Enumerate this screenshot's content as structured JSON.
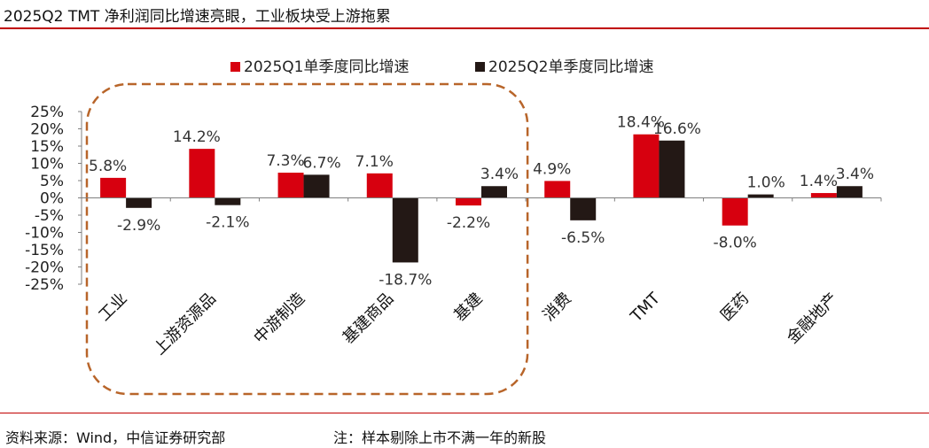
{
  "header": {
    "title": "2025Q2 TMT 净利润同比增速亮眼，工业板块受上游拖累"
  },
  "footer": {
    "source": "资料来源：Wind，中信证券研究部",
    "note": "注：样本剔除上市不满一年的新股"
  },
  "chart_data": {
    "type": "bar",
    "categories": [
      "工业",
      "上游资源品",
      "中游制造",
      "基建商品",
      "基建",
      "消费",
      "TMT",
      "医药",
      "金融地产"
    ],
    "series": [
      {
        "name": "2025Q1单季度同比增速",
        "values": [
          5.8,
          14.2,
          7.3,
          7.1,
          -2.2,
          4.9,
          18.4,
          -8.0,
          1.4
        ],
        "labels": [
          "5.8%",
          "14.2%",
          "7.3%",
          "7.1%",
          "-2.2%",
          "4.9%",
          "18.4%",
          "-8.0%",
          "1.4%"
        ],
        "color": "#d7000f"
      },
      {
        "name": "2025Q2单季度同比增速",
        "values": [
          -2.9,
          -2.1,
          6.7,
          -18.7,
          3.4,
          -6.5,
          16.6,
          1.0,
          3.4
        ],
        "labels": [
          "-2.9%",
          "-2.1%",
          "6.7%",
          "-18.7%",
          "3.4%",
          "-6.5%",
          "16.6%",
          "1.0%",
          "3.4%"
        ],
        "color": "#231815"
      }
    ],
    "ylim": [
      -25,
      25
    ],
    "yticks": [
      25,
      20,
      15,
      10,
      5,
      0,
      -5,
      -10,
      -15,
      -20,
      -25
    ],
    "ytick_labels": [
      "25%",
      "20%",
      "15%",
      "10%",
      "5%",
      "0%",
      "-5%",
      "-10%",
      "-15%",
      "-20%",
      "-25%"
    ],
    "legend_position": "top",
    "highlight": {
      "style": "dashed-rounded-rectangle",
      "color": "#b8652a",
      "categories": [
        "工业",
        "上游资源品",
        "中游制造",
        "基建商品",
        "基建"
      ]
    }
  }
}
